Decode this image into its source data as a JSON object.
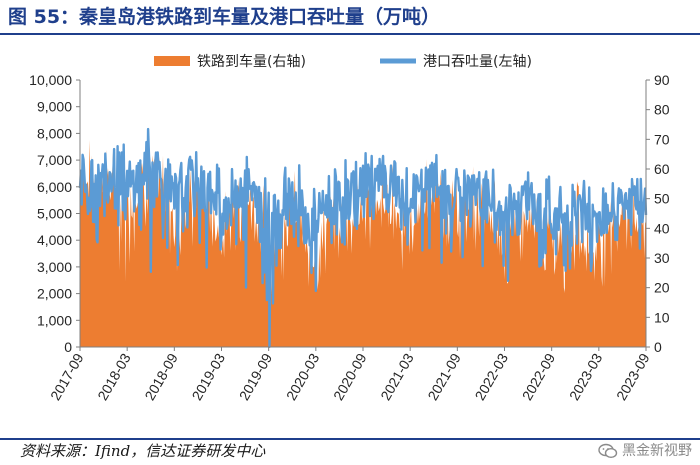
{
  "figure": {
    "title": "图 55：秦皇岛港铁路到车量及港口吞吐量（万吨）",
    "source": "资料来源：Ifind，信达证券研发中心",
    "watermark": "黑金新视野"
  },
  "colors": {
    "rail": "#ed7d31",
    "port": "#5b9bd5",
    "title": "#1f3f8c"
  },
  "chart_data": {
    "type": "area",
    "x_start": "2017-09",
    "x_end": "2023-09",
    "x_ticks": [
      "2017-09",
      "2018-03",
      "2018-09",
      "2019-03",
      "2019-09",
      "2020-03",
      "2020-09",
      "2021-03",
      "2021-09",
      "2022-03",
      "2022-09",
      "2023-03",
      "2023-09"
    ],
    "y_left": {
      "min": 0,
      "max": 10000,
      "ticks": [
        "0",
        "1,000",
        "2,000",
        "3,000",
        "4,000",
        "5,000",
        "6,000",
        "7,000",
        "8,000",
        "9,000",
        "10,000"
      ]
    },
    "y_right": {
      "min": 0,
      "max": 90,
      "ticks": [
        "0",
        "10",
        "20",
        "30",
        "40",
        "50",
        "60",
        "70",
        "80",
        "90"
      ]
    },
    "grid": false,
    "legend_position": "top",
    "series": [
      {
        "name": "铁路到车量(右轴)",
        "type": "area",
        "axis": "right",
        "color": "#ed7d31",
        "x": [
          "2017-09",
          "2017-10",
          "2017-11",
          "2017-12",
          "2018-01",
          "2018-02",
          "2018-03",
          "2018-04",
          "2018-05",
          "2018-06",
          "2018-07",
          "2018-08",
          "2018-09",
          "2018-10",
          "2018-11",
          "2018-12",
          "2019-01",
          "2019-02",
          "2019-03",
          "2019-04",
          "2019-05",
          "2019-06",
          "2019-07",
          "2019-08",
          "2019-09",
          "2019-10",
          "2019-11",
          "2019-12",
          "2020-01",
          "2020-02",
          "2020-03",
          "2020-04",
          "2020-05",
          "2020-06",
          "2020-07",
          "2020-08",
          "2020-09",
          "2020-10",
          "2020-11",
          "2020-12",
          "2021-01",
          "2021-02",
          "2021-03",
          "2021-04",
          "2021-05",
          "2021-06",
          "2021-07",
          "2021-08",
          "2021-09",
          "2021-10",
          "2021-11",
          "2021-12",
          "2022-01",
          "2022-02",
          "2022-03",
          "2022-04",
          "2022-05",
          "2022-06",
          "2022-07",
          "2022-08",
          "2022-09",
          "2022-10",
          "2022-11",
          "2022-12",
          "2023-01",
          "2023-02",
          "2023-03",
          "2023-04",
          "2023-05",
          "2023-06",
          "2023-07",
          "2023-08",
          "2023-09"
        ],
        "values": [
          62,
          56,
          50,
          58,
          54,
          52,
          47,
          52,
          57,
          55,
          56,
          50,
          38,
          44,
          48,
          52,
          46,
          42,
          40,
          45,
          50,
          53,
          48,
          44,
          28,
          40,
          44,
          48,
          43,
          30,
          32,
          38,
          42,
          45,
          44,
          47,
          46,
          48,
          50,
          49,
          47,
          42,
          40,
          46,
          50,
          52,
          48,
          46,
          45,
          44,
          48,
          47,
          45,
          38,
          36,
          40,
          43,
          45,
          42,
          40,
          38,
          36,
          40,
          42,
          40,
          34,
          36,
          40,
          44,
          46,
          45,
          43,
          44
        ],
        "range": [
          [
            55,
            80
          ],
          [
            45,
            70
          ],
          [
            30,
            70
          ],
          [
            40,
            70
          ],
          [
            42,
            68
          ],
          [
            20,
            65
          ],
          [
            28,
            62
          ],
          [
            35,
            64
          ],
          [
            40,
            68
          ],
          [
            40,
            66
          ],
          [
            36,
            66
          ],
          [
            28,
            62
          ],
          [
            24,
            54
          ],
          [
            30,
            57
          ],
          [
            32,
            60
          ],
          [
            34,
            64
          ],
          [
            32,
            60
          ],
          [
            26,
            56
          ],
          [
            28,
            53
          ],
          [
            30,
            58
          ],
          [
            34,
            64
          ],
          [
            36,
            64
          ],
          [
            32,
            60
          ],
          [
            24,
            56
          ],
          [
            14,
            44
          ],
          [
            22,
            52
          ],
          [
            30,
            56
          ],
          [
            32,
            60
          ],
          [
            28,
            56
          ],
          [
            14,
            44
          ],
          [
            18,
            48
          ],
          [
            24,
            52
          ],
          [
            28,
            55
          ],
          [
            30,
            58
          ],
          [
            30,
            56
          ],
          [
            32,
            60
          ],
          [
            30,
            60
          ],
          [
            32,
            62
          ],
          [
            34,
            64
          ],
          [
            34,
            64
          ],
          [
            32,
            62
          ],
          [
            24,
            56
          ],
          [
            24,
            52
          ],
          [
            30,
            58
          ],
          [
            34,
            64
          ],
          [
            36,
            66
          ],
          [
            32,
            62
          ],
          [
            30,
            60
          ],
          [
            30,
            58
          ],
          [
            30,
            56
          ],
          [
            32,
            62
          ],
          [
            32,
            60
          ],
          [
            30,
            58
          ],
          [
            20,
            50
          ],
          [
            20,
            48
          ],
          [
            24,
            52
          ],
          [
            28,
            56
          ],
          [
            30,
            58
          ],
          [
            26,
            54
          ],
          [
            24,
            52
          ],
          [
            22,
            50
          ],
          [
            18,
            48
          ],
          [
            24,
            54
          ],
          [
            26,
            56
          ],
          [
            24,
            54
          ],
          [
            16,
            46
          ],
          [
            20,
            48
          ],
          [
            24,
            52
          ],
          [
            28,
            58
          ],
          [
            30,
            60
          ],
          [
            30,
            58
          ],
          [
            26,
            56
          ],
          [
            28,
            56
          ]
        ]
      },
      {
        "name": "港口吞吐量(左轴)",
        "type": "line",
        "axis": "left",
        "color": "#5b9bd5",
        "x": [
          "2017-09",
          "2017-10",
          "2017-11",
          "2017-12",
          "2018-01",
          "2018-02",
          "2018-03",
          "2018-04",
          "2018-05",
          "2018-06",
          "2018-07",
          "2018-08",
          "2018-09",
          "2018-10",
          "2018-11",
          "2018-12",
          "2019-01",
          "2019-02",
          "2019-03",
          "2019-04",
          "2019-05",
          "2019-06",
          "2019-07",
          "2019-08",
          "2019-09",
          "2019-10",
          "2019-11",
          "2019-12",
          "2020-01",
          "2020-02",
          "2020-03",
          "2020-04",
          "2020-05",
          "2020-06",
          "2020-07",
          "2020-08",
          "2020-09",
          "2020-10",
          "2020-11",
          "2020-12",
          "2021-01",
          "2021-02",
          "2021-03",
          "2021-04",
          "2021-05",
          "2021-06",
          "2021-07",
          "2021-08",
          "2021-09",
          "2021-10",
          "2021-11",
          "2021-12",
          "2022-01",
          "2022-02",
          "2022-03",
          "2022-04",
          "2022-05",
          "2022-06",
          "2022-07",
          "2022-08",
          "2022-09",
          "2022-10",
          "2022-11",
          "2022-12",
          "2023-01",
          "2023-02",
          "2023-03",
          "2023-04",
          "2023-05",
          "2023-06",
          "2023-07",
          "2023-08",
          "2023-09"
        ],
        "values": [
          6200,
          6000,
          5800,
          6300,
          6600,
          6100,
          5800,
          6200,
          6700,
          6400,
          6500,
          5900,
          5300,
          5600,
          5900,
          6100,
          5800,
          5300,
          5000,
          5400,
          5900,
          6100,
          5700,
          5200,
          4500,
          5000,
          5400,
          5700,
          5300,
          4400,
          4600,
          5100,
          5400,
          5600,
          5500,
          5800,
          6000,
          6100,
          6200,
          6200,
          5900,
          5400,
          5300,
          5700,
          6000,
          6100,
          5800,
          5600,
          5500,
          5400,
          5700,
          5600,
          5400,
          4900,
          4800,
          5100,
          5300,
          5500,
          5200,
          5000,
          4800,
          4700,
          5000,
          5200,
          5000,
          4500,
          4700,
          5000,
          5300,
          5500,
          5300,
          5100,
          5200
        ],
        "range": [
          [
            5000,
            7500
          ],
          [
            1500,
            7000
          ],
          [
            3000,
            7500
          ],
          [
            1200,
            7800
          ],
          [
            4500,
            8000
          ],
          [
            2000,
            7600
          ],
          [
            2200,
            7000
          ],
          [
            4000,
            7600
          ],
          [
            3000,
            8200
          ],
          [
            1500,
            7800
          ],
          [
            4000,
            8200
          ],
          [
            3200,
            7600
          ],
          [
            1200,
            7000
          ],
          [
            4000,
            7200
          ],
          [
            2000,
            7600
          ],
          [
            3500,
            7500
          ],
          [
            2500,
            7200
          ],
          [
            3500,
            6900
          ],
          [
            2800,
            6800
          ],
          [
            2000,
            7000
          ],
          [
            3800,
            7400
          ],
          [
            2000,
            7400
          ],
          [
            3500,
            7100
          ],
          [
            1500,
            6800
          ],
          [
            0,
            6000
          ],
          [
            2500,
            6500
          ],
          [
            1800,
            6800
          ],
          [
            3500,
            7000
          ],
          [
            2800,
            6900
          ],
          [
            2000,
            6000
          ],
          [
            1800,
            6200
          ],
          [
            3200,
            6500
          ],
          [
            3000,
            7000
          ],
          [
            3800,
            7000
          ],
          [
            3000,
            6900
          ],
          [
            3500,
            7200
          ],
          [
            2500,
            8300
          ],
          [
            4000,
            7400
          ],
          [
            3000,
            7600
          ],
          [
            4200,
            7600
          ],
          [
            3500,
            7200
          ],
          [
            3000,
            6800
          ],
          [
            2200,
            6600
          ],
          [
            3200,
            7000
          ],
          [
            3500,
            7300
          ],
          [
            4000,
            7200
          ],
          [
            3000,
            7000
          ],
          [
            3500,
            6800
          ],
          [
            3000,
            6800
          ],
          [
            1200,
            6600
          ],
          [
            3500,
            7000
          ],
          [
            2800,
            7000
          ],
          [
            3000,
            6700
          ],
          [
            3000,
            6500
          ],
          [
            1800,
            6300
          ],
          [
            3500,
            6600
          ],
          [
            3200,
            6800
          ],
          [
            3500,
            7000
          ],
          [
            3000,
            6800
          ],
          [
            3200,
            6400
          ],
          [
            3000,
            6300
          ],
          [
            2000,
            6200
          ],
          [
            2800,
            6500
          ],
          [
            3500,
            6800
          ],
          [
            2500,
            6500
          ],
          [
            2500,
            6000
          ],
          [
            3000,
            6200
          ],
          [
            3000,
            6500
          ],
          [
            3500,
            7000
          ],
          [
            3500,
            7100
          ],
          [
            1200,
            6800
          ],
          [
            3000,
            6500
          ],
          [
            3200,
            6400
          ]
        ]
      }
    ]
  }
}
